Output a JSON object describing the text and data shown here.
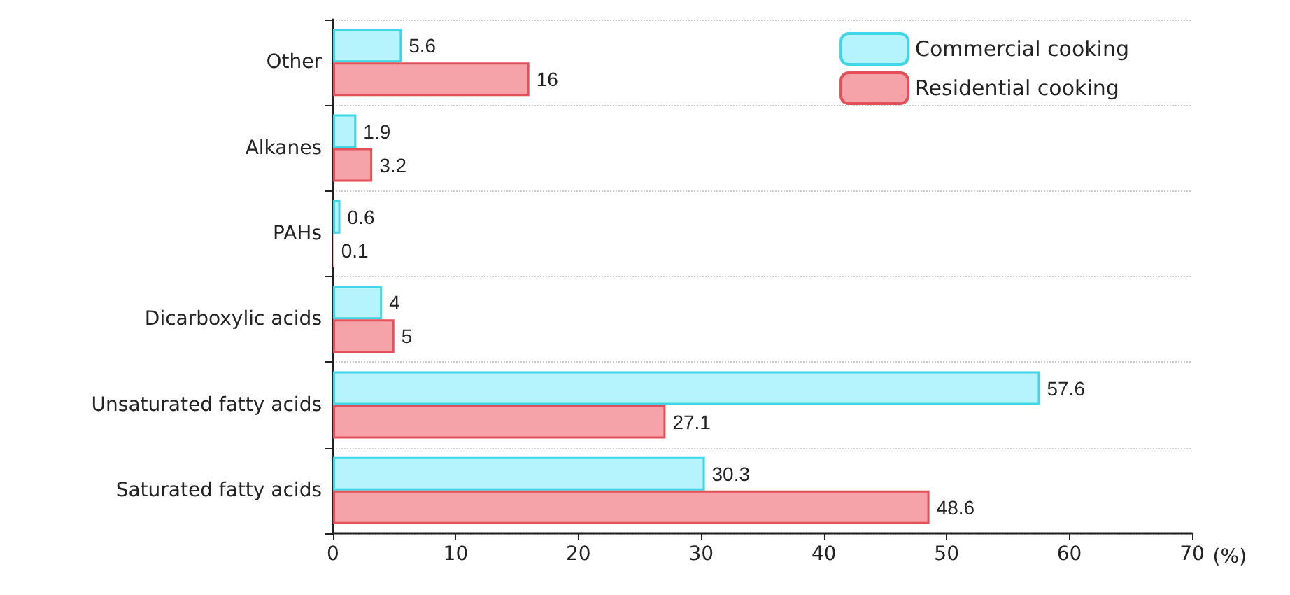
{
  "chart_data": {
    "type": "bar",
    "orientation": "horizontal",
    "xlabel": "(%)",
    "categories": [
      "Other",
      "Alkanes",
      "PAHs",
      "Dicarboxylic acids",
      "Unsaturated fatty acids",
      "Saturated fatty acids"
    ],
    "series": [
      {
        "name": "Commercial cooking",
        "color": "#b5f4fc",
        "values": [
          5.6,
          1.9,
          0.6,
          4,
          57.6,
          30.3
        ]
      },
      {
        "name": "Residential cooking",
        "color": "#f5a3a9",
        "values": [
          16,
          3.2,
          0.1,
          5,
          27.1,
          48.6
        ]
      }
    ],
    "xlim": [
      0,
      70
    ],
    "xticks": [
      0,
      10,
      20,
      30,
      40,
      50,
      60,
      70
    ],
    "grid": "y",
    "legend": "top right",
    "data_labels": true
  }
}
